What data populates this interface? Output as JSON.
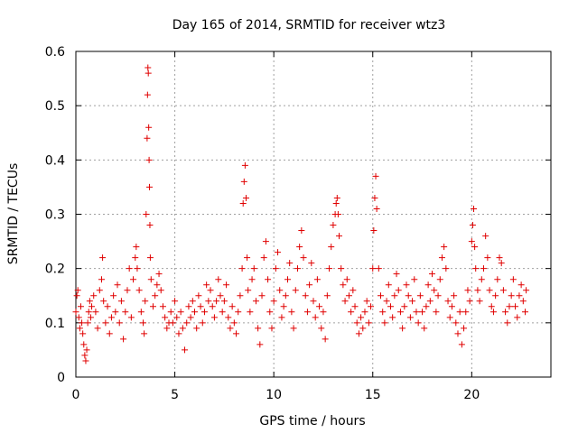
{
  "chart_data": {
    "type": "scatter",
    "title": "Day 165 of 2014, SRMTID for receiver wtz3",
    "xlabel": "GPS time / hours",
    "ylabel": "SRMTID / TECUs",
    "xlim": [
      0,
      24
    ],
    "ylim": [
      0,
      0.6
    ],
    "x_ticks": [
      0,
      5,
      10,
      15,
      20
    ],
    "x_tick_labels": [
      "0",
      "5",
      "10",
      "15",
      "20"
    ],
    "y_ticks": [
      0,
      0.1,
      0.2,
      0.3,
      0.4,
      0.5,
      0.6
    ],
    "y_tick_labels": [
      "0",
      "0.1",
      "0.2",
      "0.3",
      "0.4",
      "0.5",
      "0.6"
    ],
    "grid": true,
    "marker": "plus",
    "marker_color": "#e00000",
    "series": [
      {
        "name": "SRMTID",
        "points": [
          [
            0.0,
            0.12
          ],
          [
            0.05,
            0.15
          ],
          [
            0.1,
            0.16
          ],
          [
            0.15,
            0.11
          ],
          [
            0.2,
            0.09
          ],
          [
            0.25,
            0.13
          ],
          [
            0.3,
            0.1
          ],
          [
            0.35,
            0.08
          ],
          [
            0.4,
            0.06
          ],
          [
            0.45,
            0.04
          ],
          [
            0.5,
            0.03
          ],
          [
            0.55,
            0.05
          ],
          [
            0.6,
            0.1
          ],
          [
            0.65,
            0.12
          ],
          [
            0.7,
            0.14
          ],
          [
            0.75,
            0.11
          ],
          [
            0.8,
            0.13
          ],
          [
            0.9,
            0.15
          ],
          [
            1.0,
            0.12
          ],
          [
            1.1,
            0.09
          ],
          [
            1.2,
            0.16
          ],
          [
            1.3,
            0.18
          ],
          [
            1.35,
            0.22
          ],
          [
            1.4,
            0.14
          ],
          [
            1.5,
            0.1
          ],
          [
            1.6,
            0.13
          ],
          [
            1.7,
            0.08
          ],
          [
            1.8,
            0.11
          ],
          [
            1.9,
            0.15
          ],
          [
            2.0,
            0.12
          ],
          [
            2.1,
            0.17
          ],
          [
            2.2,
            0.1
          ],
          [
            2.3,
            0.14
          ],
          [
            2.4,
            0.07
          ],
          [
            2.5,
            0.12
          ],
          [
            2.6,
            0.16
          ],
          [
            2.7,
            0.2
          ],
          [
            2.8,
            0.11
          ],
          [
            2.9,
            0.18
          ],
          [
            3.0,
            0.22
          ],
          [
            3.05,
            0.24
          ],
          [
            3.1,
            0.2
          ],
          [
            3.2,
            0.16
          ],
          [
            3.3,
            0.12
          ],
          [
            3.4,
            0.1
          ],
          [
            3.45,
            0.08
          ],
          [
            3.5,
            0.14
          ],
          [
            3.55,
            0.3
          ],
          [
            3.6,
            0.44
          ],
          [
            3.62,
            0.52
          ],
          [
            3.64,
            0.57
          ],
          [
            3.66,
            0.56
          ],
          [
            3.68,
            0.46
          ],
          [
            3.7,
            0.4
          ],
          [
            3.72,
            0.35
          ],
          [
            3.74,
            0.28
          ],
          [
            3.76,
            0.22
          ],
          [
            3.8,
            0.18
          ],
          [
            3.9,
            0.13
          ],
          [
            4.0,
            0.15
          ],
          [
            4.1,
            0.17
          ],
          [
            4.2,
            0.19
          ],
          [
            4.3,
            0.16
          ],
          [
            4.4,
            0.13
          ],
          [
            4.5,
            0.11
          ],
          [
            4.6,
            0.09
          ],
          [
            4.7,
            0.1
          ],
          [
            4.8,
            0.12
          ],
          [
            4.9,
            0.1
          ],
          [
            5.0,
            0.14
          ],
          [
            5.1,
            0.11
          ],
          [
            5.2,
            0.08
          ],
          [
            5.3,
            0.12
          ],
          [
            5.4,
            0.09
          ],
          [
            5.5,
            0.05
          ],
          [
            5.6,
            0.1
          ],
          [
            5.7,
            0.13
          ],
          [
            5.8,
            0.11
          ],
          [
            5.9,
            0.14
          ],
          [
            6.0,
            0.12
          ],
          [
            6.1,
            0.09
          ],
          [
            6.2,
            0.15
          ],
          [
            6.3,
            0.13
          ],
          [
            6.4,
            0.1
          ],
          [
            6.5,
            0.12
          ],
          [
            6.6,
            0.17
          ],
          [
            6.7,
            0.14
          ],
          [
            6.8,
            0.16
          ],
          [
            6.9,
            0.13
          ],
          [
            7.0,
            0.11
          ],
          [
            7.1,
            0.14
          ],
          [
            7.2,
            0.18
          ],
          [
            7.3,
            0.15
          ],
          [
            7.4,
            0.12
          ],
          [
            7.5,
            0.14
          ],
          [
            7.6,
            0.17
          ],
          [
            7.7,
            0.11
          ],
          [
            7.8,
            0.09
          ],
          [
            7.9,
            0.13
          ],
          [
            8.0,
            0.1
          ],
          [
            8.1,
            0.08
          ],
          [
            8.2,
            0.12
          ],
          [
            8.3,
            0.15
          ],
          [
            8.4,
            0.2
          ],
          [
            8.45,
            0.32
          ],
          [
            8.5,
            0.36
          ],
          [
            8.55,
            0.39
          ],
          [
            8.6,
            0.33
          ],
          [
            8.65,
            0.22
          ],
          [
            8.7,
            0.16
          ],
          [
            8.8,
            0.12
          ],
          [
            8.9,
            0.18
          ],
          [
            9.0,
            0.2
          ],
          [
            9.1,
            0.14
          ],
          [
            9.2,
            0.09
          ],
          [
            9.3,
            0.06
          ],
          [
            9.4,
            0.15
          ],
          [
            9.5,
            0.22
          ],
          [
            9.6,
            0.25
          ],
          [
            9.7,
            0.18
          ],
          [
            9.8,
            0.12
          ],
          [
            9.9,
            0.09
          ],
          [
            10.0,
            0.14
          ],
          [
            10.1,
            0.2
          ],
          [
            10.2,
            0.23
          ],
          [
            10.3,
            0.16
          ],
          [
            10.4,
            0.11
          ],
          [
            10.5,
            0.13
          ],
          [
            10.6,
            0.15
          ],
          [
            10.7,
            0.18
          ],
          [
            10.8,
            0.21
          ],
          [
            10.9,
            0.12
          ],
          [
            11.0,
            0.09
          ],
          [
            11.1,
            0.16
          ],
          [
            11.2,
            0.2
          ],
          [
            11.3,
            0.24
          ],
          [
            11.4,
            0.27
          ],
          [
            11.5,
            0.22
          ],
          [
            11.6,
            0.15
          ],
          [
            11.7,
            0.12
          ],
          [
            11.8,
            0.17
          ],
          [
            11.9,
            0.21
          ],
          [
            12.0,
            0.14
          ],
          [
            12.1,
            0.11
          ],
          [
            12.2,
            0.18
          ],
          [
            12.3,
            0.13
          ],
          [
            12.4,
            0.09
          ],
          [
            12.5,
            0.12
          ],
          [
            12.6,
            0.07
          ],
          [
            12.7,
            0.15
          ],
          [
            12.8,
            0.2
          ],
          [
            12.9,
            0.24
          ],
          [
            13.0,
            0.28
          ],
          [
            13.1,
            0.3
          ],
          [
            13.15,
            0.32
          ],
          [
            13.2,
            0.33
          ],
          [
            13.25,
            0.3
          ],
          [
            13.3,
            0.26
          ],
          [
            13.4,
            0.2
          ],
          [
            13.5,
            0.17
          ],
          [
            13.6,
            0.14
          ],
          [
            13.7,
            0.18
          ],
          [
            13.8,
            0.15
          ],
          [
            13.9,
            0.12
          ],
          [
            14.0,
            0.16
          ],
          [
            14.1,
            0.13
          ],
          [
            14.2,
            0.1
          ],
          [
            14.3,
            0.08
          ],
          [
            14.4,
            0.11
          ],
          [
            14.5,
            0.09
          ],
          [
            14.6,
            0.12
          ],
          [
            14.7,
            0.14
          ],
          [
            14.8,
            0.1
          ],
          [
            14.9,
            0.13
          ],
          [
            15.0,
            0.2
          ],
          [
            15.05,
            0.27
          ],
          [
            15.1,
            0.33
          ],
          [
            15.15,
            0.37
          ],
          [
            15.2,
            0.31
          ],
          [
            15.3,
            0.2
          ],
          [
            15.4,
            0.15
          ],
          [
            15.5,
            0.12
          ],
          [
            15.6,
            0.1
          ],
          [
            15.7,
            0.14
          ],
          [
            15.8,
            0.17
          ],
          [
            15.9,
            0.13
          ],
          [
            16.0,
            0.11
          ],
          [
            16.1,
            0.15
          ],
          [
            16.2,
            0.19
          ],
          [
            16.3,
            0.16
          ],
          [
            16.4,
            0.12
          ],
          [
            16.5,
            0.09
          ],
          [
            16.6,
            0.13
          ],
          [
            16.7,
            0.17
          ],
          [
            16.8,
            0.15
          ],
          [
            16.9,
            0.11
          ],
          [
            17.0,
            0.14
          ],
          [
            17.1,
            0.18
          ],
          [
            17.2,
            0.12
          ],
          [
            17.3,
            0.1
          ],
          [
            17.4,
            0.15
          ],
          [
            17.5,
            0.12
          ],
          [
            17.6,
            0.09
          ],
          [
            17.7,
            0.13
          ],
          [
            17.8,
            0.17
          ],
          [
            17.9,
            0.14
          ],
          [
            18.0,
            0.19
          ],
          [
            18.1,
            0.16
          ],
          [
            18.2,
            0.12
          ],
          [
            18.3,
            0.15
          ],
          [
            18.4,
            0.18
          ],
          [
            18.5,
            0.22
          ],
          [
            18.6,
            0.24
          ],
          [
            18.7,
            0.2
          ],
          [
            18.8,
            0.14
          ],
          [
            18.9,
            0.11
          ],
          [
            19.0,
            0.13
          ],
          [
            19.1,
            0.15
          ],
          [
            19.2,
            0.1
          ],
          [
            19.3,
            0.08
          ],
          [
            19.4,
            0.12
          ],
          [
            19.5,
            0.06
          ],
          [
            19.6,
            0.09
          ],
          [
            19.7,
            0.12
          ],
          [
            19.8,
            0.16
          ],
          [
            19.9,
            0.14
          ],
          [
            20.0,
            0.25
          ],
          [
            20.05,
            0.28
          ],
          [
            20.1,
            0.31
          ],
          [
            20.15,
            0.24
          ],
          [
            20.2,
            0.2
          ],
          [
            20.3,
            0.16
          ],
          [
            20.4,
            0.14
          ],
          [
            20.5,
            0.18
          ],
          [
            20.6,
            0.2
          ],
          [
            20.7,
            0.26
          ],
          [
            20.8,
            0.22
          ],
          [
            20.9,
            0.16
          ],
          [
            21.0,
            0.13
          ],
          [
            21.1,
            0.12
          ],
          [
            21.2,
            0.15
          ],
          [
            21.3,
            0.18
          ],
          [
            21.4,
            0.22
          ],
          [
            21.5,
            0.21
          ],
          [
            21.6,
            0.16
          ],
          [
            21.7,
            0.12
          ],
          [
            21.8,
            0.1
          ],
          [
            21.9,
            0.13
          ],
          [
            22.0,
            0.15
          ],
          [
            22.1,
            0.18
          ],
          [
            22.2,
            0.13
          ],
          [
            22.3,
            0.11
          ],
          [
            22.4,
            0.15
          ],
          [
            22.5,
            0.17
          ],
          [
            22.6,
            0.14
          ],
          [
            22.7,
            0.12
          ],
          [
            22.75,
            0.16
          ]
        ]
      }
    ]
  }
}
